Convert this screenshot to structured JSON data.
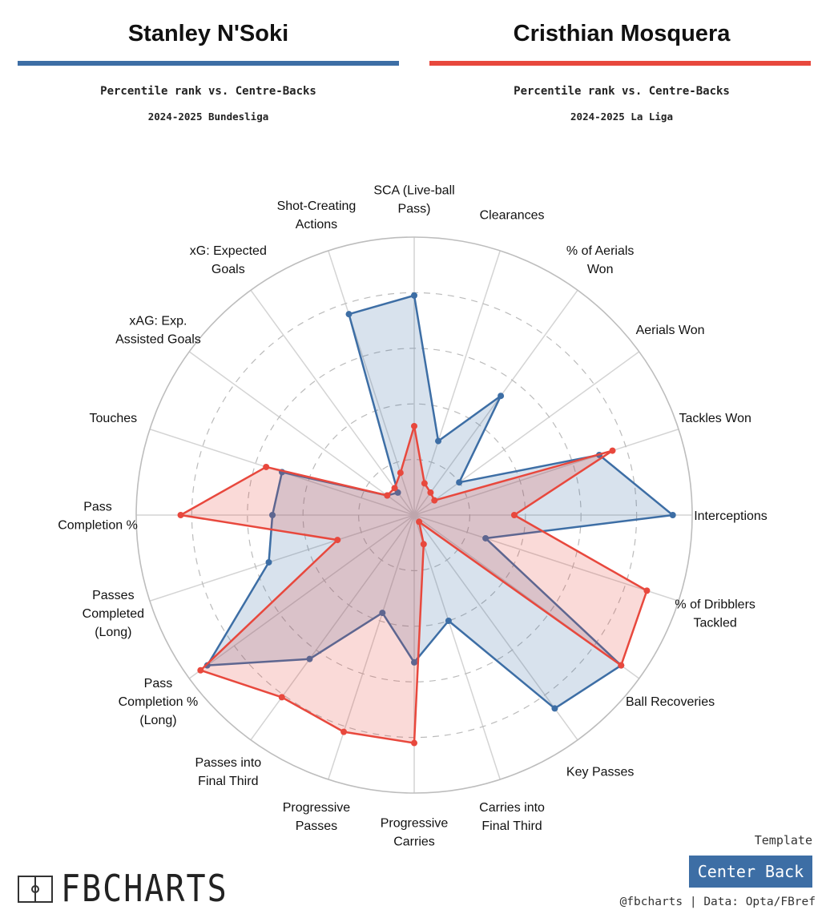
{
  "players": {
    "left": {
      "name": "Stanley N'Soki",
      "subtitle": "Percentile rank vs. Centre-Backs",
      "season": "2024-2025 Bundesliga",
      "color": "#3d6ea5"
    },
    "right": {
      "name": "Cristhian Mosquera",
      "subtitle": "Percentile rank vs. Centre-Backs",
      "season": "2024-2025 La Liga",
      "color": "#e8483d"
    }
  },
  "chart_data": {
    "type": "radar",
    "rmax": 100,
    "rings": [
      20,
      40,
      60,
      80,
      100
    ],
    "axes": [
      "Interceptions",
      "Tackles Won",
      "Aerials Won",
      "% of Aerials Won",
      "Clearances",
      "SCA (Live-ball Pass)",
      "Shot-Creating Actions",
      "xG: Expected Goals",
      "xAG: Exp. Assisted Goals",
      "Touches",
      "Pass Completion %",
      "Passes Completed (Long)",
      "Pass Completion % (Long)",
      "Passes into Final Third",
      "Progressive Passes",
      "Progressive Carries",
      "Carries into Final Third",
      "Key Passes",
      "Ball Recoveries",
      "% of Dribblers Tackled"
    ],
    "series": [
      {
        "name": "Stanley N'Soki",
        "color": "#3d6ea5",
        "values": [
          93,
          70,
          20,
          53,
          28,
          79,
          76,
          10,
          12,
          50,
          51,
          55,
          92,
          64,
          37,
          53,
          40,
          86,
          92,
          27
        ]
      },
      {
        "name": "Cristhian Mosquera",
        "color": "#e8483d",
        "values": [
          36,
          75,
          9,
          10,
          12,
          32,
          16,
          12,
          12,
          56,
          84,
          29,
          95,
          81,
          82,
          82,
          11,
          3,
          92,
          88
        ]
      }
    ]
  },
  "footer": {
    "logo_text": "FBCHARTS",
    "template_label": "Template",
    "template_value": "Center Back",
    "template_color": "#3d6ea5",
    "credit": "@fbcharts | Data: Opta/FBref"
  }
}
